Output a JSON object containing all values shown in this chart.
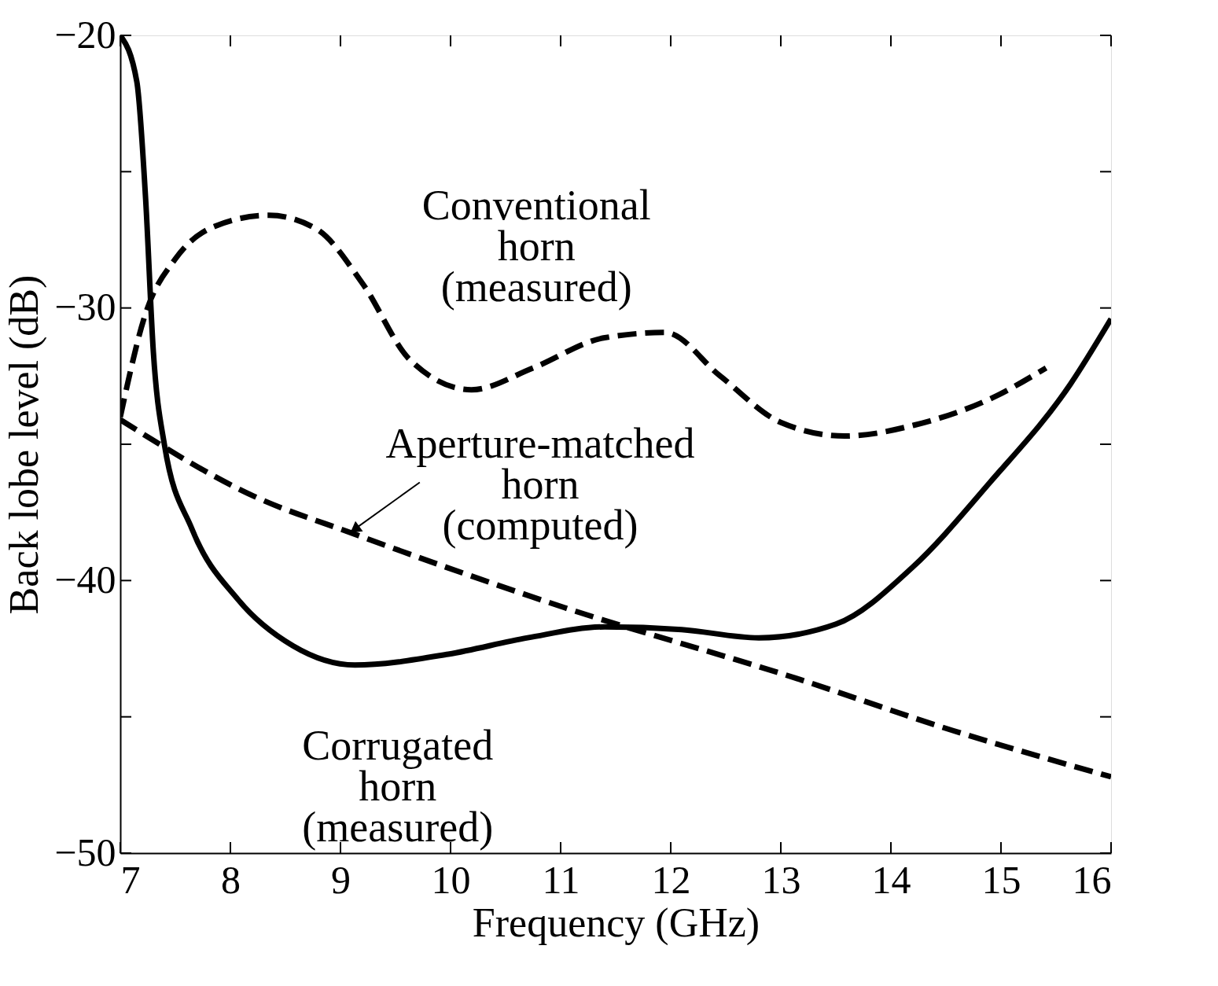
{
  "chart_data": {
    "type": "line",
    "xlabel": "Frequency (GHz)",
    "ylabel": "Back lobe level (dB)",
    "xlim": [
      7,
      16
    ],
    "xticks": [
      7,
      8,
      9,
      10,
      11,
      12,
      13,
      14,
      15,
      16
    ],
    "ylim": [
      -50,
      -20
    ],
    "yticks": [
      -50,
      {
        "value": -45,
        "label": null
      },
      -40,
      {
        "value": -35,
        "label": null
      },
      -30,
      {
        "value": -25,
        "label": null
      },
      -20
    ],
    "grid": false,
    "series": [
      {
        "color": "#000000",
        "line_style": "solid",
        "x": [
          7,
          7.15,
          7.23,
          7.3,
          7.4,
          7.65,
          8.07,
          8.57,
          9.13,
          9.98,
          10.7,
          11.4,
          12.1,
          12.8,
          13.5,
          14.2,
          14.9,
          15.63,
          16
        ],
        "values": [
          -20,
          -21.7,
          -26,
          -31.6,
          -35,
          -38.1,
          -40.7,
          -42.4,
          -43.1,
          -42.7,
          -42.1,
          -41.7,
          -41.8,
          -42.1,
          -41.6,
          -39.5,
          -36.4,
          -32.8,
          -30.4
        ]
      },
      {
        "color": "#000000",
        "line_style": "dashed",
        "x": [
          7,
          7.23,
          7.5,
          7.86,
          8.35,
          8.78,
          9.2,
          9.63,
          10.19,
          10.75,
          11.39,
          11.95,
          12.45,
          13.0,
          13.58,
          14.21,
          14.92,
          15.41
        ],
        "values": [
          -34,
          -30.2,
          -28.2,
          -27,
          -26.6,
          -27.1,
          -29.1,
          -31.9,
          -33,
          -32.2,
          -31.1,
          -30.9,
          -32.5,
          -34.2,
          -34.7,
          -34.3,
          -33.3,
          -32.2
        ]
      },
      {
        "color": "#000000",
        "line_style": "dashed",
        "x": [
          7,
          8.21,
          9.13,
          11.04,
          13.15,
          14.56,
          16
        ],
        "values": [
          -34.1,
          -36.9,
          -38.3,
          -41,
          -43.6,
          -45.5,
          -47.2
        ]
      }
    ],
    "annotations": [
      "Conventional\nhorn\n(measured)",
      {
        "text": "Aperture-matched\nhorn\n(computed)",
        "x": 9.1,
        "y": -38.2
      },
      "Corrugated\nhorn\n(measured)"
    ]
  }
}
